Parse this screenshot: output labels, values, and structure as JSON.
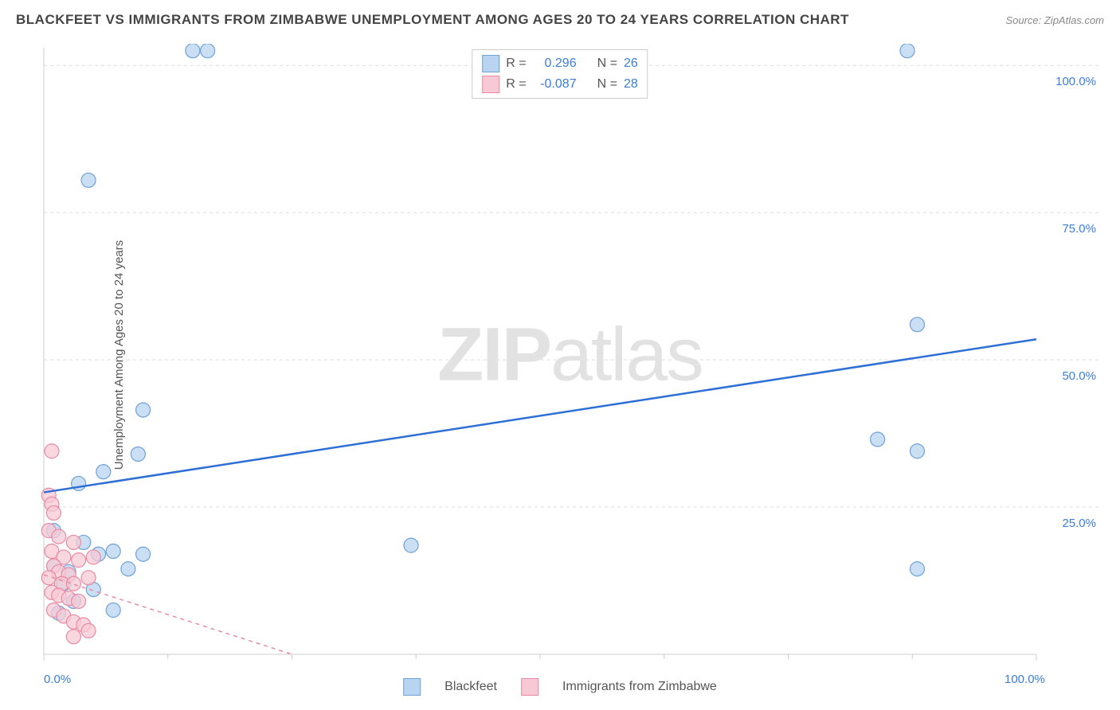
{
  "title": "BLACKFEET VS IMMIGRANTS FROM ZIMBABWE UNEMPLOYMENT AMONG AGES 20 TO 24 YEARS CORRELATION CHART",
  "source_label": "Source: ZipAtlas.com",
  "ylabel": "Unemployment Among Ages 20 to 24 years",
  "watermark_bold": "ZIP",
  "watermark_rest": "atlas",
  "chart": {
    "type": "scatter",
    "xlim": [
      0,
      100
    ],
    "ylim": [
      0,
      103
    ],
    "y_ticks": [
      25.0,
      50.0,
      75.0,
      100.0
    ],
    "y_tick_labels": [
      "25.0%",
      "50.0%",
      "75.0%",
      "100.0%"
    ],
    "x_ticks": [
      0.0,
      100.0
    ],
    "x_tick_labels": [
      "0.0%",
      "100.0%"
    ],
    "x_minor_ticks": [
      12.5,
      25,
      37.5,
      50,
      62.5,
      75,
      87.5
    ],
    "grid_color": "#dddddd",
    "axis_color": "#cccccc",
    "background": "#ffffff",
    "label_color": "#3b7dd8",
    "series": [
      {
        "name": "Blackfeet",
        "color_fill": "#b9d4f0",
        "color_stroke": "#6ea2d8",
        "marker_radius": 9,
        "marker_opacity": 0.75,
        "r_value": "0.296",
        "n_value": "26",
        "points": [
          [
            4.5,
            80.5
          ],
          [
            15,
            102.5
          ],
          [
            16.5,
            102.5
          ],
          [
            87,
            102.5
          ],
          [
            88,
            56
          ],
          [
            84,
            36.5
          ],
          [
            88,
            34.5
          ],
          [
            88,
            14.5
          ],
          [
            37,
            18.5
          ],
          [
            10,
            41.5
          ],
          [
            6,
            31
          ],
          [
            9.5,
            34
          ],
          [
            3.5,
            29
          ],
          [
            4,
            19
          ],
          [
            5.5,
            17
          ],
          [
            7,
            17.5
          ],
          [
            10,
            17
          ],
          [
            8.5,
            14.5
          ],
          [
            5,
            11
          ],
          [
            7,
            7.5
          ],
          [
            2,
            12
          ],
          [
            3,
            9
          ],
          [
            1.5,
            7
          ],
          [
            1,
            15
          ],
          [
            1,
            21
          ],
          [
            2.5,
            14
          ]
        ],
        "trend_line": {
          "x0": 0,
          "y0": 27.5,
          "x1": 100,
          "y1": 53.5,
          "color": "#2e6fd6",
          "width": 2.5,
          "dash": "none"
        }
      },
      {
        "name": "Immigrants from Zimbabwe",
        "color_fill": "#f7c9d4",
        "color_stroke": "#e98aa4",
        "marker_radius": 9,
        "marker_opacity": 0.75,
        "r_value": "-0.087",
        "n_value": "28",
        "points": [
          [
            0.8,
            34.5
          ],
          [
            0.5,
            27
          ],
          [
            0.8,
            25.5
          ],
          [
            1,
            24
          ],
          [
            0.5,
            21
          ],
          [
            1.5,
            20
          ],
          [
            3,
            19
          ],
          [
            0.8,
            17.5
          ],
          [
            2,
            16.5
          ],
          [
            3.5,
            16
          ],
          [
            5,
            16.5
          ],
          [
            1,
            15
          ],
          [
            1.5,
            14
          ],
          [
            2.5,
            13.5
          ],
          [
            0.5,
            13
          ],
          [
            1.8,
            12
          ],
          [
            3,
            12
          ],
          [
            4.5,
            13
          ],
          [
            0.8,
            10.5
          ],
          [
            1.5,
            10
          ],
          [
            2.5,
            9.5
          ],
          [
            3.5,
            9
          ],
          [
            1,
            7.5
          ],
          [
            2,
            6.5
          ],
          [
            3,
            5.5
          ],
          [
            4,
            5
          ],
          [
            4.5,
            4
          ],
          [
            3,
            3
          ]
        ],
        "trend_line": {
          "x0": 0,
          "y0": 13.5,
          "x1": 25,
          "y1": 0,
          "color": "#e98aa4",
          "width": 1.5,
          "dash": "5,5"
        }
      }
    ]
  },
  "corr_legend_prefix": "R =",
  "corr_legend_n_prefix": "N =",
  "bottom_legend": [
    "Blackfeet",
    "Immigrants from Zimbabwe"
  ]
}
